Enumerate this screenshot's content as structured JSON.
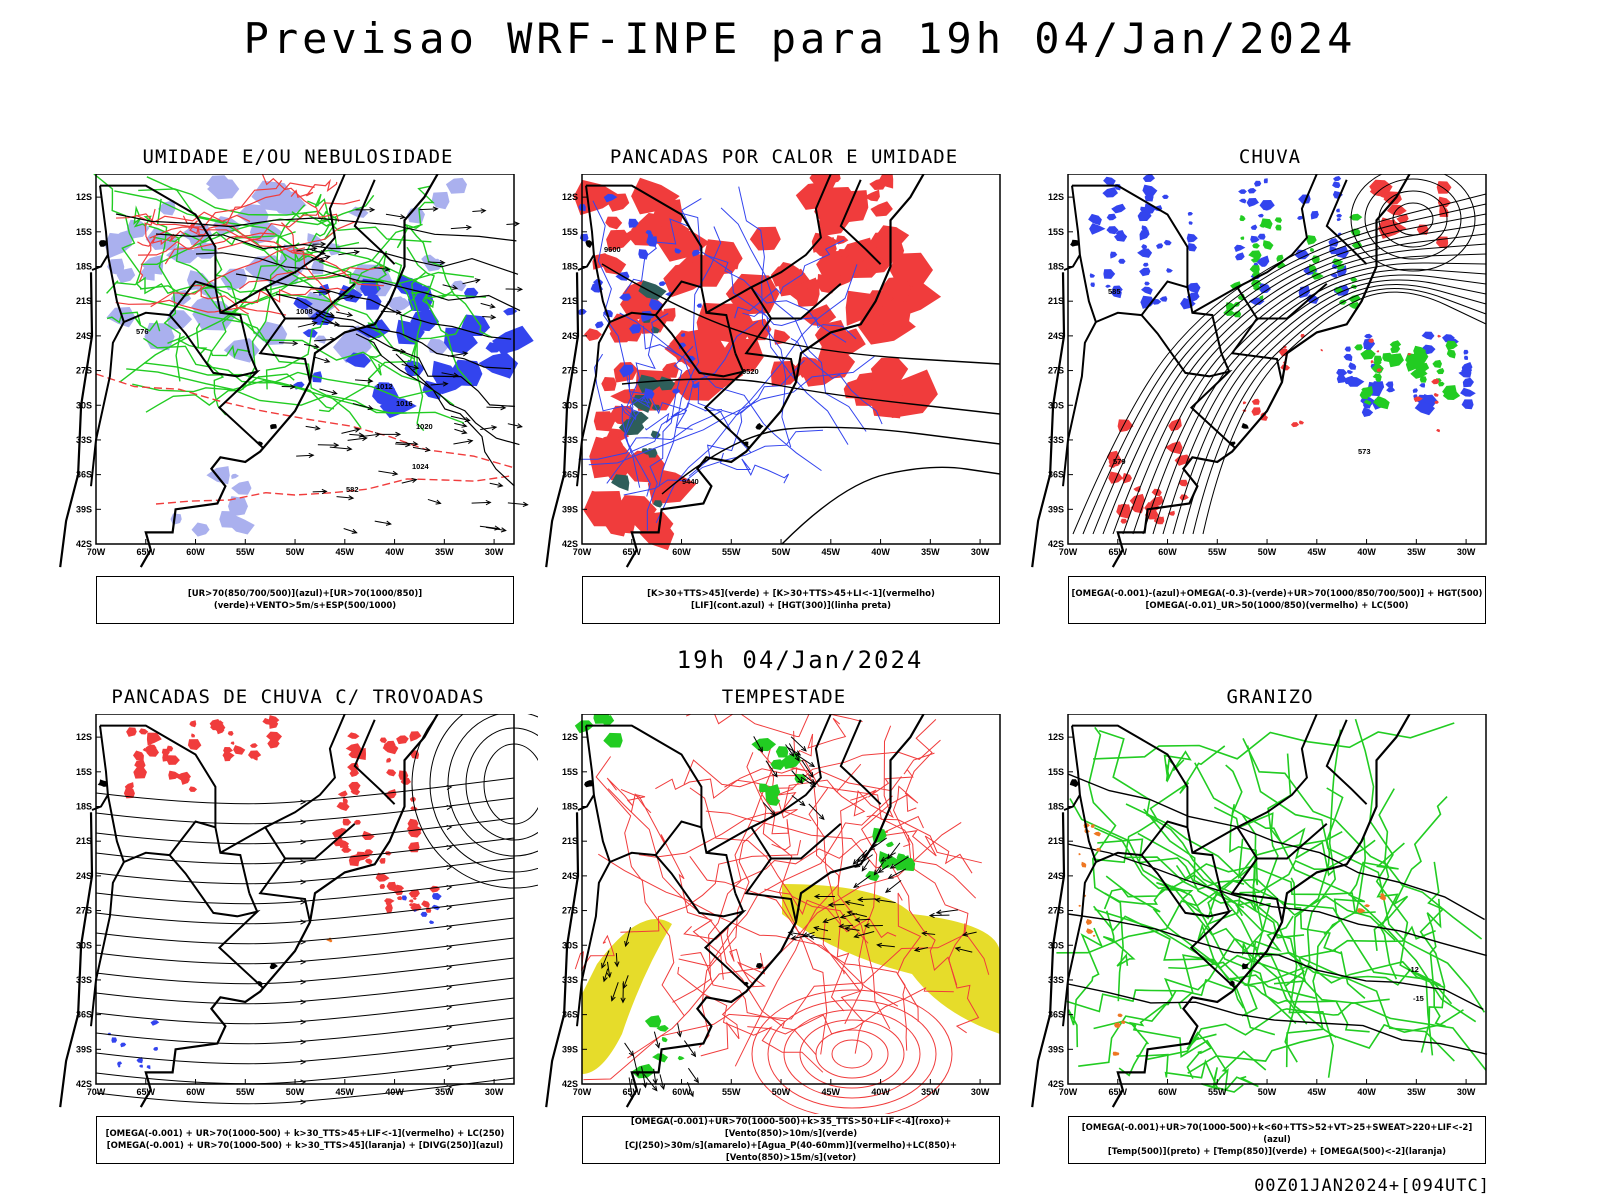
{
  "title": "Previsao WRF-INPE  para 19h 04/Jan/2024",
  "middle_title": "19h 04/Jan/2024",
  "footer": "00Z01JAN2024+[094UTC]",
  "axes": {
    "lat_ticks": [
      "12S",
      "15S",
      "18S",
      "21S",
      "24S",
      "27S",
      "30S",
      "33S",
      "36S",
      "39S",
      "42S"
    ],
    "lon_ticks": [
      "70W",
      "65W",
      "60W",
      "55W",
      "50W",
      "45W",
      "40W",
      "35W",
      "30W"
    ]
  },
  "colors": {
    "red": "#f03c3c",
    "green": "#22cc22",
    "blue": "#3344ee",
    "lightblue": "#aab0ee",
    "yellow": "#e6dc2a",
    "darkteal": "#2e5e5a",
    "orange": "#ee7722",
    "black": "#000000"
  },
  "panels": [
    {
      "title": "UMIDADE E/OU NEBULOSIDADE",
      "legend": [
        "[UR>70(850/700/500)](azul)+[UR>70(1000/850)](verde)+VENTO>5m/s+ESP(500/1000)"
      ],
      "labels": [
        "1008",
        "1012",
        "1016",
        "1020",
        "1024",
        "576",
        "582"
      ]
    },
    {
      "title": "PANCADAS POR CALOR E UMIDADE",
      "legend": [
        "[K>30+TTS>45](verde) + [K>30+TTS>45+LI<-1](vermelho)",
        "[LIF](cont.azul) + [HGT(300)](linha preta)"
      ],
      "labels": [
        "9600",
        "9520",
        "9440"
      ]
    },
    {
      "title": "CHUVA",
      "legend": [
        "[OMEGA(-0.001)-(azul)+OMEGA(-0.3)-(verde)+UR>70(1000/850/700/500)] + HGT(500)",
        "[OMEGA(-0.01)_UR>50(1000/850)(vermelho) + LC(500)"
      ],
      "labels": [
        "585",
        "579",
        "573"
      ]
    },
    {
      "title": "PANCADAS DE CHUVA C/ TROVOADAS",
      "legend": [
        "[OMEGA(-0.001) + UR>70(1000-500) + k>30_TTS>45+LIF<-1](vermelho) + LC(250)",
        "[OMEGA(-0.001) + UR>70(1000-500) + k>30_TTS>45](laranja) + [DIVG(250)](azul)"
      ],
      "labels": []
    },
    {
      "title": "TEMPESTADE",
      "legend": [
        "[OMEGA(-0.001)+UR>70(1000-500)+k>35_TTS>50+LIF<-4](roxo)+[Vento(850)>10m/s](verde)",
        "[CJ(250)>30m/s](amarelo)+[Agua_P(40-60mm)](vermelho)+LC(850)+[Vento(850)>15m/s](vetor)"
      ],
      "labels": []
    },
    {
      "title": "GRANIZO",
      "legend": [
        "[OMEGA(-0.001)+UR>70(1000-500)+k<60+TTS>52+VT>25+SWEAT>220+LIF<-2](azul)",
        "[Temp(500)](preto) + [Temp(850)](verde) + [OMEGA(500)<-2](laranja)"
      ],
      "labels": [
        "-12",
        "-15"
      ]
    }
  ]
}
